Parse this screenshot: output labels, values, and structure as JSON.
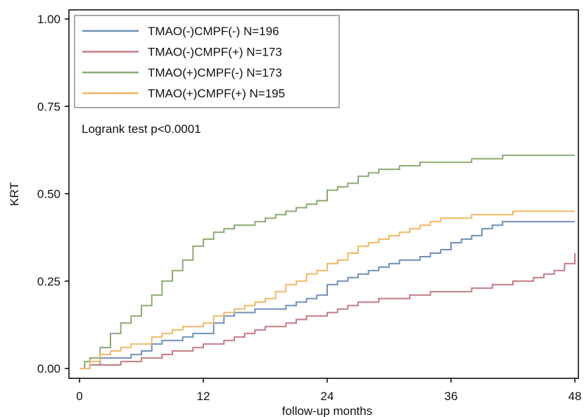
{
  "chart_data": {
    "type": "line",
    "title": "",
    "xlabel": "follow-up months",
    "ylabel": "KRT",
    "xlim": [
      0,
      48
    ],
    "ylim": [
      0,
      1
    ],
    "x_ticks": [
      "0",
      "12",
      "24",
      "36",
      "48"
    ],
    "y_ticks": [
      "0.00",
      "0.25",
      "0.50",
      "0.75",
      "1.00"
    ],
    "legend_position": "top-left",
    "annotation": "Logrank test p<0.0001",
    "series": [
      {
        "name": "TMAO(-)CMPF(-) N=196",
        "color": "#6f8fb8",
        "points": [
          [
            0,
            0
          ],
          [
            1,
            0.01
          ],
          [
            2,
            0.03
          ],
          [
            3,
            0.03
          ],
          [
            4,
            0.03
          ],
          [
            5,
            0.04
          ],
          [
            6,
            0.05
          ],
          [
            7,
            0.07
          ],
          [
            8,
            0.08
          ],
          [
            10,
            0.09
          ],
          [
            11,
            0.1
          ],
          [
            12,
            0.1
          ],
          [
            13,
            0.13
          ],
          [
            14,
            0.15
          ],
          [
            15,
            0.16
          ],
          [
            16,
            0.16
          ],
          [
            17,
            0.17
          ],
          [
            18,
            0.17
          ],
          [
            19,
            0.17
          ],
          [
            20,
            0.18
          ],
          [
            21,
            0.19
          ],
          [
            22,
            0.2
          ],
          [
            23,
            0.21
          ],
          [
            24,
            0.24
          ],
          [
            25,
            0.25
          ],
          [
            26,
            0.26
          ],
          [
            27,
            0.27
          ],
          [
            28,
            0.28
          ],
          [
            29,
            0.29
          ],
          [
            30,
            0.3
          ],
          [
            31,
            0.31
          ],
          [
            32,
            0.31
          ],
          [
            33,
            0.32
          ],
          [
            34,
            0.33
          ],
          [
            35,
            0.34
          ],
          [
            36,
            0.36
          ],
          [
            37,
            0.37
          ],
          [
            38,
            0.38
          ],
          [
            39,
            0.4
          ],
          [
            40,
            0.41
          ],
          [
            41,
            0.42
          ],
          [
            48,
            0.42
          ]
        ]
      },
      {
        "name": "TMAO(-)CMPF(+) N=173",
        "color": "#c47b84",
        "points": [
          [
            0,
            0
          ],
          [
            1,
            0.01
          ],
          [
            2,
            0.01
          ],
          [
            4,
            0.02
          ],
          [
            6,
            0.03
          ],
          [
            8,
            0.04
          ],
          [
            9,
            0.05
          ],
          [
            10,
            0.05
          ],
          [
            11,
            0.06
          ],
          [
            12,
            0.07
          ],
          [
            13,
            0.07
          ],
          [
            14,
            0.08
          ],
          [
            15,
            0.09
          ],
          [
            16,
            0.1
          ],
          [
            17,
            0.11
          ],
          [
            18,
            0.12
          ],
          [
            19,
            0.12
          ],
          [
            20,
            0.13
          ],
          [
            21,
            0.14
          ],
          [
            22,
            0.15
          ],
          [
            23,
            0.15
          ],
          [
            24,
            0.16
          ],
          [
            25,
            0.17
          ],
          [
            26,
            0.18
          ],
          [
            27,
            0.19
          ],
          [
            28,
            0.19
          ],
          [
            29,
            0.2
          ],
          [
            30,
            0.2
          ],
          [
            32,
            0.21
          ],
          [
            33,
            0.21
          ],
          [
            34,
            0.22
          ],
          [
            36,
            0.22
          ],
          [
            38,
            0.23
          ],
          [
            40,
            0.24
          ],
          [
            42,
            0.25
          ],
          [
            43,
            0.25
          ],
          [
            44,
            0.26
          ],
          [
            45,
            0.27
          ],
          [
            46,
            0.28
          ],
          [
            47,
            0.3
          ],
          [
            48,
            0.33
          ]
        ]
      },
      {
        "name": "TMAO(+)CMPF(-) N=173",
        "color": "#8aaa72",
        "points": [
          [
            0,
            0
          ],
          [
            0.5,
            0.02
          ],
          [
            1,
            0.03
          ],
          [
            2,
            0.06
          ],
          [
            3,
            0.1
          ],
          [
            4,
            0.13
          ],
          [
            5,
            0.15
          ],
          [
            6,
            0.18
          ],
          [
            7,
            0.21
          ],
          [
            8,
            0.25
          ],
          [
            9,
            0.28
          ],
          [
            10,
            0.31
          ],
          [
            11,
            0.35
          ],
          [
            12,
            0.37
          ],
          [
            13,
            0.39
          ],
          [
            14,
            0.4
          ],
          [
            15,
            0.41
          ],
          [
            16,
            0.41
          ],
          [
            17,
            0.42
          ],
          [
            18,
            0.43
          ],
          [
            19,
            0.44
          ],
          [
            20,
            0.45
          ],
          [
            21,
            0.46
          ],
          [
            22,
            0.47
          ],
          [
            23,
            0.48
          ],
          [
            24,
            0.51
          ],
          [
            25,
            0.52
          ],
          [
            26,
            0.53
          ],
          [
            27,
            0.55
          ],
          [
            28,
            0.56
          ],
          [
            29,
            0.57
          ],
          [
            30,
            0.57
          ],
          [
            31,
            0.58
          ],
          [
            32,
            0.58
          ],
          [
            33,
            0.59
          ],
          [
            34,
            0.59
          ],
          [
            36,
            0.59
          ],
          [
            38,
            0.6
          ],
          [
            40,
            0.6
          ],
          [
            41,
            0.61
          ],
          [
            48,
            0.61
          ]
        ]
      },
      {
        "name": "TMAO(+)CMPF(+) N=195",
        "color": "#f0b865",
        "points": [
          [
            0,
            0
          ],
          [
            1,
            0.02
          ],
          [
            2,
            0.04
          ],
          [
            3,
            0.05
          ],
          [
            4,
            0.06
          ],
          [
            5,
            0.07
          ],
          [
            6,
            0.07
          ],
          [
            7,
            0.09
          ],
          [
            8,
            0.1
          ],
          [
            9,
            0.11
          ],
          [
            10,
            0.12
          ],
          [
            11,
            0.12
          ],
          [
            12,
            0.13
          ],
          [
            13,
            0.15
          ],
          [
            14,
            0.16
          ],
          [
            15,
            0.17
          ],
          [
            16,
            0.18
          ],
          [
            17,
            0.19
          ],
          [
            18,
            0.2
          ],
          [
            19,
            0.22
          ],
          [
            20,
            0.24
          ],
          [
            21,
            0.25
          ],
          [
            22,
            0.27
          ],
          [
            23,
            0.28
          ],
          [
            24,
            0.3
          ],
          [
            25,
            0.31
          ],
          [
            26,
            0.33
          ],
          [
            27,
            0.35
          ],
          [
            28,
            0.36
          ],
          [
            29,
            0.37
          ],
          [
            30,
            0.38
          ],
          [
            31,
            0.39
          ],
          [
            32,
            0.4
          ],
          [
            33,
            0.41
          ],
          [
            34,
            0.42
          ],
          [
            35,
            0.43
          ],
          [
            36,
            0.43
          ],
          [
            38,
            0.44
          ],
          [
            40,
            0.44
          ],
          [
            42,
            0.45
          ],
          [
            48,
            0.45
          ]
        ]
      }
    ]
  }
}
